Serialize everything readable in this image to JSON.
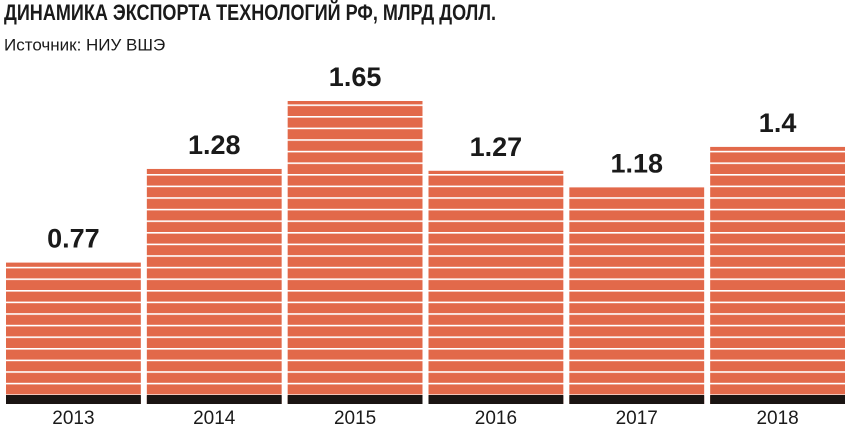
{
  "chart_data": {
    "type": "bar",
    "title": "ДИНАМИКА ЭКСПОРТА ТЕХНОЛОГИЙ РФ, МЛРД ДОЛЛ.",
    "subtitle": "Источник: НИУ ВШЭ",
    "categories": [
      "2013",
      "2014",
      "2015",
      "2016",
      "2017",
      "2018"
    ],
    "values": [
      0.77,
      1.28,
      1.65,
      1.27,
      1.18,
      1.4
    ],
    "color": "#e2694a"
  }
}
